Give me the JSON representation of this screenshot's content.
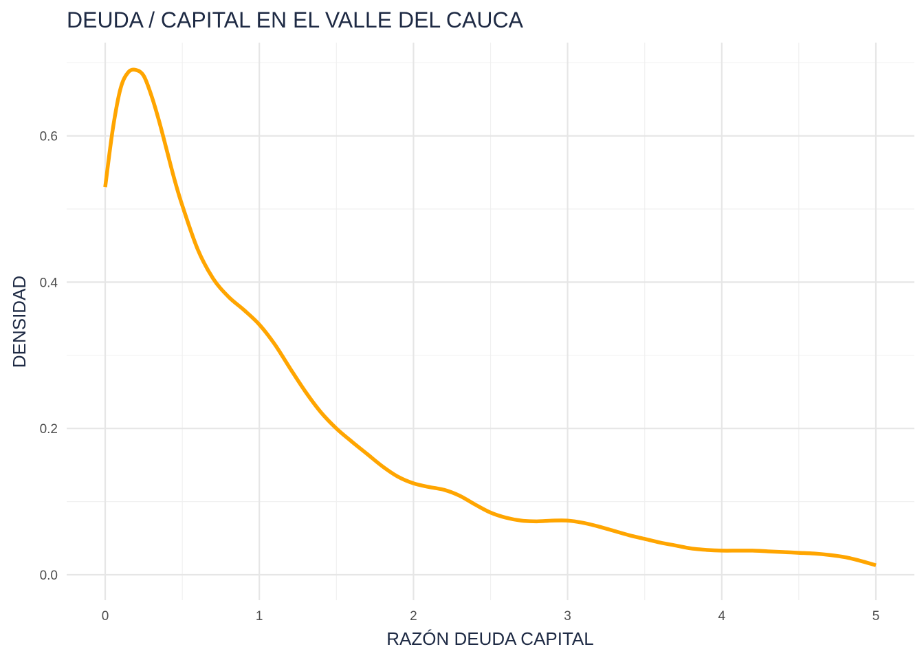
{
  "chart_data": {
    "type": "line",
    "title": "DEUDA / CAPITAL EN EL VALLE DEL CAUCA",
    "xlabel": "RAZÓN DEUDA CAPITAL",
    "ylabel": "DENSIDAD",
    "xlim": [
      -0.25,
      5.25
    ],
    "ylim": [
      -0.07,
      0.7
    ],
    "x_ticks": [
      "0",
      "1",
      "2",
      "3",
      "4",
      "5"
    ],
    "y_ticks": [
      "0.0",
      "0.2",
      "0.4",
      "0.6"
    ],
    "grid": true,
    "line_color": "#FFA500",
    "series": [
      {
        "x": [
          0.0,
          0.05,
          0.1,
          0.15,
          0.2,
          0.25,
          0.3,
          0.35,
          0.4,
          0.45,
          0.5,
          0.6,
          0.7,
          0.8,
          0.9,
          1.0,
          1.1,
          1.2,
          1.3,
          1.4,
          1.5,
          1.6,
          1.7,
          1.8,
          1.9,
          2.0,
          2.1,
          2.2,
          2.3,
          2.4,
          2.5,
          2.6,
          2.7,
          2.8,
          2.9,
          3.0,
          3.1,
          3.2,
          3.3,
          3.4,
          3.5,
          3.6,
          3.7,
          3.8,
          3.9,
          4.0,
          4.1,
          4.2,
          4.3,
          4.4,
          4.5,
          4.6,
          4.7,
          4.8,
          4.9,
          5.0
        ],
        "y": [
          0.53,
          0.61,
          0.665,
          0.687,
          0.69,
          0.682,
          0.655,
          0.62,
          0.58,
          0.54,
          0.505,
          0.445,
          0.405,
          0.38,
          0.362,
          0.342,
          0.315,
          0.282,
          0.25,
          0.222,
          0.2,
          0.182,
          0.165,
          0.148,
          0.134,
          0.125,
          0.12,
          0.116,
          0.108,
          0.096,
          0.085,
          0.078,
          0.074,
          0.073,
          0.074,
          0.074,
          0.071,
          0.066,
          0.06,
          0.054,
          0.049,
          0.044,
          0.04,
          0.036,
          0.034,
          0.033,
          0.033,
          0.033,
          0.032,
          0.031,
          0.03,
          0.029,
          0.027,
          0.024,
          0.019,
          0.013
        ]
      }
    ]
  }
}
